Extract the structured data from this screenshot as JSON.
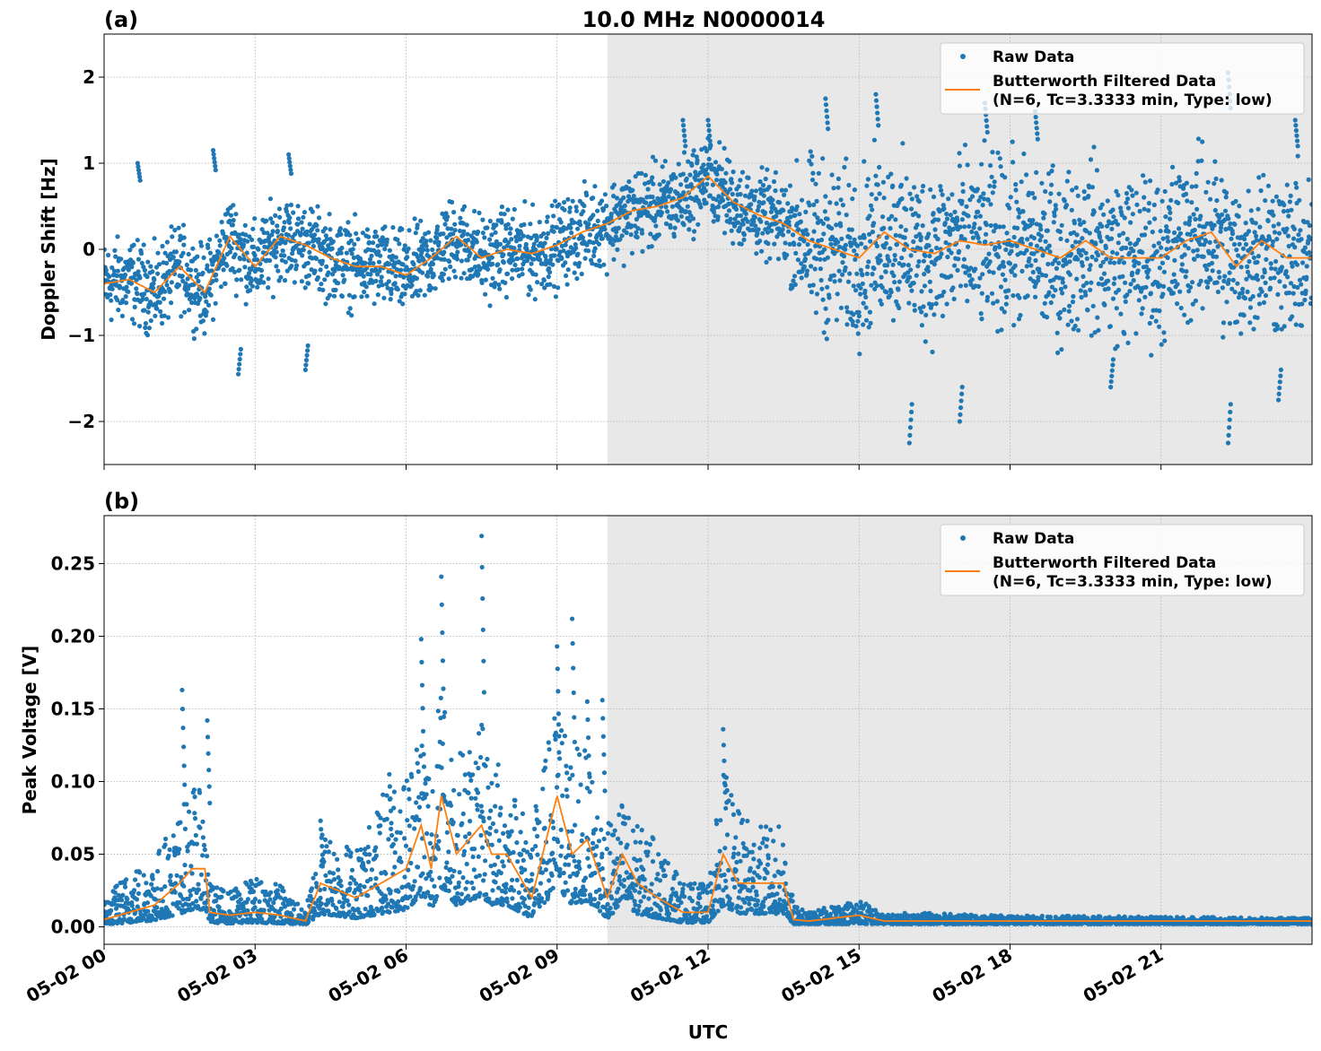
{
  "title": "10.0 MHz N0000014",
  "colors": {
    "raw": "#1f77b4",
    "filtered": "#ff7f0e",
    "shade": "#e8e8e8",
    "grid": "#b0b0b0"
  },
  "legend": {
    "raw_label": "Raw Data",
    "filtered_label_line1": "Butterworth Filtered Data",
    "filtered_label_line2": "(N=6, Tc=3.3333 min, Type: low)",
    "placement": "upper-right"
  },
  "xlabel": "UTC",
  "x_tick_labels": [
    "05-02 00",
    "05-02 03",
    "05-02 06",
    "05-02 09",
    "05-02 12",
    "05-02 15",
    "05-02 18",
    "05-02 21"
  ],
  "chart_data": [
    {
      "type": "scatter",
      "panel_label": "(a)",
      "ylabel": "Doppler Shift [Hz]",
      "xlim": [
        "05-02 00:00",
        "05-03 00:00"
      ],
      "ylim": [
        -2.5,
        2.5
      ],
      "y_ticks": [
        -2,
        -1,
        0,
        1,
        2
      ],
      "y_tick_labels": [
        "−2",
        "−1",
        "0",
        "1",
        "2"
      ],
      "grid": true,
      "shaded_interval": [
        "05-02 10:00",
        "05-03 00:00"
      ],
      "filtered": {
        "x": [
          "00:00",
          "00:30",
          "01:00",
          "01:30",
          "02:00",
          "02:30",
          "03:00",
          "03:30",
          "04:00",
          "04:30",
          "05:00",
          "05:30",
          "06:00",
          "06:30",
          "07:00",
          "07:30",
          "08:00",
          "08:30",
          "09:00",
          "09:30",
          "10:00",
          "10:30",
          "11:00",
          "11:30",
          "12:00",
          "12:30",
          "13:00",
          "13:30",
          "14:00",
          "14:30",
          "15:00",
          "15:30",
          "16:00",
          "16:30",
          "17:00",
          "17:30",
          "18:00",
          "18:30",
          "19:00",
          "19:30",
          "20:00",
          "20:30",
          "21:00",
          "21:30",
          "22:00",
          "22:30",
          "23:00",
          "23:30",
          "24:00"
        ],
        "y": [
          -0.4,
          -0.35,
          -0.5,
          -0.2,
          -0.5,
          0.15,
          -0.2,
          0.15,
          0.05,
          -0.1,
          -0.2,
          -0.2,
          -0.3,
          -0.1,
          0.15,
          -0.1,
          0.0,
          -0.05,
          0.05,
          0.2,
          0.3,
          0.45,
          0.5,
          0.6,
          0.85,
          0.55,
          0.4,
          0.3,
          0.1,
          0.0,
          -0.1,
          0.2,
          0.0,
          -0.05,
          0.1,
          0.05,
          0.1,
          0.0,
          -0.1,
          0.1,
          -0.1,
          -0.1,
          -0.1,
          0.1,
          0.2,
          -0.2,
          0.1,
          -0.1,
          -0.1
        ]
      },
      "raw_spread": {
        "x": [
          "00:00",
          "13:30",
          "14:00",
          "24:00"
        ],
        "half_width": [
          0.5,
          0.5,
          1.0,
          1.0
        ]
      },
      "raw_outliers": [
        [
          "00:40",
          1.0
        ],
        [
          "02:10",
          1.15
        ],
        [
          "03:40",
          1.1
        ],
        [
          "04:00",
          -1.4
        ],
        [
          "02:40",
          -1.45
        ],
        [
          "11:30",
          1.5
        ],
        [
          "12:00",
          1.5
        ],
        [
          "14:20",
          1.75
        ],
        [
          "15:20",
          1.8
        ],
        [
          "16:00",
          -2.25
        ],
        [
          "17:00",
          -2.0
        ],
        [
          "17:30",
          1.7
        ],
        [
          "18:30",
          1.6
        ],
        [
          "20:00",
          -1.6
        ],
        [
          "22:20",
          -2.25
        ],
        [
          "22:20",
          2.05
        ],
        [
          "23:20",
          -1.75
        ],
        [
          "23:40",
          1.5
        ]
      ]
    },
    {
      "type": "scatter",
      "panel_label": "(b)",
      "ylabel": "Peak Voltage [V]",
      "xlim": [
        "05-02 00:00",
        "05-03 00:00"
      ],
      "ylim": [
        -0.012,
        0.283
      ],
      "y_ticks": [
        0,
        0.05,
        0.1,
        0.15,
        0.2,
        0.25
      ],
      "y_tick_labels": [
        "0.00",
        "0.05",
        "0.10",
        "0.15",
        "0.20",
        "0.25"
      ],
      "grid": true,
      "shaded_interval": [
        "05-02 10:00",
        "05-03 00:00"
      ],
      "filtered": {
        "x": [
          "00:00",
          "00:30",
          "01:00",
          "01:30",
          "01:45",
          "02:00",
          "02:06",
          "02:30",
          "03:00",
          "03:30",
          "04:00",
          "04:18",
          "05:00",
          "05:30",
          "06:00",
          "06:18",
          "06:30",
          "06:42",
          "07:00",
          "07:30",
          "07:42",
          "08:00",
          "08:30",
          "09:00",
          "09:18",
          "09:36",
          "10:00",
          "10:18",
          "10:36",
          "11:00",
          "11:30",
          "12:00",
          "12:18",
          "12:36",
          "13:00",
          "13:30",
          "13:42",
          "14:00",
          "15:00",
          "15:30",
          "16:00",
          "24:00"
        ],
        "y": [
          0.005,
          0.01,
          0.015,
          0.03,
          0.04,
          0.04,
          0.01,
          0.008,
          0.01,
          0.008,
          0.004,
          0.03,
          0.02,
          0.03,
          0.04,
          0.07,
          0.04,
          0.09,
          0.05,
          0.07,
          0.05,
          0.05,
          0.02,
          0.09,
          0.05,
          0.06,
          0.02,
          0.05,
          0.03,
          0.02,
          0.01,
          0.01,
          0.05,
          0.03,
          0.03,
          0.03,
          0.005,
          0.004,
          0.008,
          0.004,
          0.004,
          0.004
        ]
      },
      "raw_upper": {
        "x": [
          "00:00",
          "00:30",
          "01:00",
          "01:30",
          "01:45",
          "02:00",
          "02:06",
          "02:30",
          "03:00",
          "03:30",
          "04:00",
          "04:18",
          "05:00",
          "05:30",
          "06:00",
          "06:18",
          "06:30",
          "06:42",
          "07:00",
          "07:30",
          "07:42",
          "08:00",
          "08:30",
          "09:00",
          "09:18",
          "09:36",
          "10:00",
          "10:18",
          "10:36",
          "11:00",
          "11:30",
          "12:00",
          "12:18",
          "12:36",
          "13:00",
          "13:30",
          "13:42",
          "14:00",
          "15:00",
          "15:30",
          "16:00",
          "17:30",
          "24:00"
        ],
        "y": [
          0.02,
          0.04,
          0.05,
          0.08,
          0.1,
          0.09,
          0.03,
          0.025,
          0.035,
          0.03,
          0.01,
          0.07,
          0.055,
          0.09,
          0.11,
          0.16,
          0.12,
          0.17,
          0.12,
          0.14,
          0.12,
          0.11,
          0.07,
          0.16,
          0.13,
          0.12,
          0.07,
          0.09,
          0.07,
          0.06,
          0.03,
          0.03,
          0.11,
          0.08,
          0.07,
          0.07,
          0.015,
          0.01,
          0.02,
          0.008,
          0.01,
          0.008,
          0.006
        ]
      },
      "raw_outliers": [
        [
          "01:33",
          0.163
        ],
        [
          "02:03",
          0.142
        ],
        [
          "06:18",
          0.198
        ],
        [
          "06:42",
          0.241
        ],
        [
          "07:30",
          0.269
        ],
        [
          "09:00",
          0.193
        ],
        [
          "09:18",
          0.212
        ],
        [
          "09:36",
          0.155
        ],
        [
          "09:54",
          0.156
        ],
        [
          "12:18",
          0.136
        ],
        [
          "04:18",
          0.073
        ],
        [
          "05:40",
          0.105
        ]
      ]
    }
  ]
}
